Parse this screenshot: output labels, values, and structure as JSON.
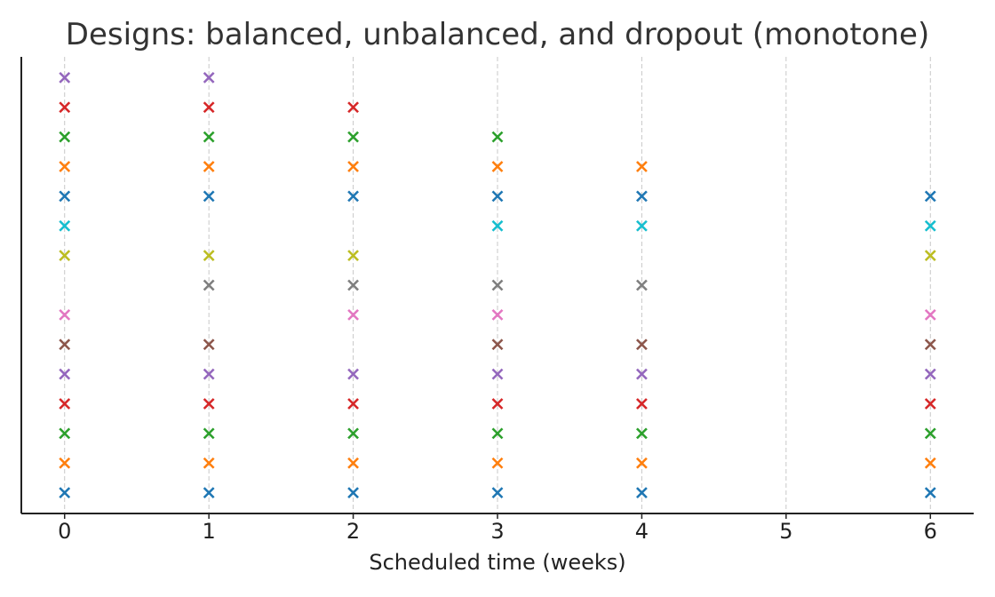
{
  "chart_data": {
    "type": "scatter",
    "marker": "x",
    "title": "Designs: balanced, unbalanced, and dropout (monotone)",
    "xlabel": "Scheduled time (weeks)",
    "ylabel": "",
    "xlim": [
      -0.3,
      6.3
    ],
    "ylim": [
      -0.7,
      14.7
    ],
    "xticks": [
      0,
      1,
      2,
      3,
      4,
      5,
      6
    ],
    "show_y_ticks": false,
    "grid": "vertical dashed at x ticks",
    "palette": [
      "#1f77b4",
      "#ff7f0e",
      "#2ca02c",
      "#d62728",
      "#9467bd",
      "#8c564b",
      "#e377c2",
      "#7f7f7f",
      "#bcbd22",
      "#17becf"
    ],
    "rows": [
      {
        "y": 0,
        "color": "#1f77b4",
        "x": [
          0,
          1,
          2,
          3,
          4,
          6
        ]
      },
      {
        "y": 1,
        "color": "#ff7f0e",
        "x": [
          0,
          1,
          2,
          3,
          4,
          6
        ]
      },
      {
        "y": 2,
        "color": "#2ca02c",
        "x": [
          0,
          1,
          2,
          3,
          4,
          6
        ]
      },
      {
        "y": 3,
        "color": "#d62728",
        "x": [
          0,
          1,
          2,
          3,
          4,
          6
        ]
      },
      {
        "y": 4,
        "color": "#9467bd",
        "x": [
          0,
          1,
          2,
          3,
          4,
          6
        ]
      },
      {
        "y": 5,
        "color": "#8c564b",
        "x": [
          0,
          1,
          3,
          4,
          6
        ]
      },
      {
        "y": 6,
        "color": "#e377c2",
        "x": [
          0,
          2,
          3,
          6
        ]
      },
      {
        "y": 7,
        "color": "#7f7f7f",
        "x": [
          1,
          2,
          3,
          4
        ]
      },
      {
        "y": 8,
        "color": "#bcbd22",
        "x": [
          0,
          1,
          2,
          6
        ]
      },
      {
        "y": 9,
        "color": "#17becf",
        "x": [
          0,
          3,
          4,
          6
        ]
      },
      {
        "y": 10,
        "color": "#1f77b4",
        "x": [
          0,
          1,
          2,
          3,
          4,
          6
        ]
      },
      {
        "y": 11,
        "color": "#ff7f0e",
        "x": [
          0,
          1,
          2,
          3,
          4
        ]
      },
      {
        "y": 12,
        "color": "#2ca02c",
        "x": [
          0,
          1,
          2,
          3
        ]
      },
      {
        "y": 13,
        "color": "#d62728",
        "x": [
          0,
          1,
          2
        ]
      },
      {
        "y": 14,
        "color": "#9467bd",
        "x": [
          0,
          1
        ]
      }
    ]
  }
}
